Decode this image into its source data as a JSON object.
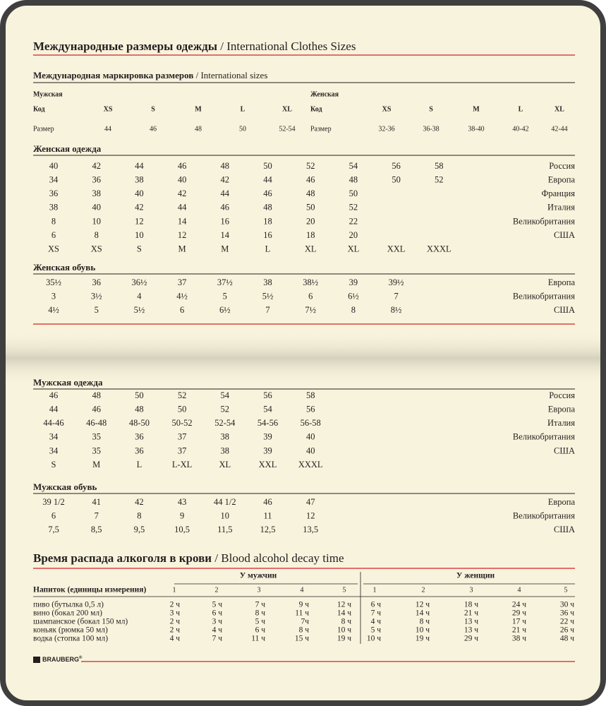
{
  "header": {
    "title": "Международные размеры одежды",
    "subtitle": "/ International Clothes Sizes"
  },
  "international": {
    "title": "Международная маркировка размеров",
    "subtitle": "/ International sizes",
    "men": {
      "label": "Мужская",
      "rows": [
        [
          "Код",
          "XS",
          "S",
          "M",
          "L",
          "XL"
        ],
        [
          "Размер",
          "44",
          "46",
          "48",
          "50",
          "52-54"
        ]
      ]
    },
    "women": {
      "label": "Женская",
      "rows": [
        [
          "Код",
          "XS",
          "S",
          "M",
          "L",
          "XL"
        ],
        [
          "Размер",
          "32-36",
          "36-38",
          "38-40",
          "40-42",
          "42-44"
        ]
      ]
    }
  },
  "sections": [
    {
      "title": "Женская одежда",
      "rows": [
        {
          "cells": [
            "40",
            "42",
            "44",
            "46",
            "48",
            "50",
            "52",
            "54",
            "56",
            "58"
          ],
          "country": "Россия"
        },
        {
          "cells": [
            "34",
            "36",
            "38",
            "40",
            "42",
            "44",
            "46",
            "48",
            "50",
            "52"
          ],
          "country": "Европа"
        },
        {
          "cells": [
            "36",
            "38",
            "40",
            "42",
            "44",
            "46",
            "48",
            "50"
          ],
          "country": "Франция"
        },
        {
          "cells": [
            "38",
            "40",
            "42",
            "44",
            "46",
            "48",
            "50",
            "52"
          ],
          "country": "Италия"
        },
        {
          "cells": [
            "8",
            "10",
            "12",
            "14",
            "16",
            "18",
            "20",
            "22"
          ],
          "country": "Великобритания"
        },
        {
          "cells": [
            "6",
            "8",
            "10",
            "12",
            "14",
            "16",
            "18",
            "20"
          ],
          "country": "США"
        },
        {
          "cells": [
            "XS",
            "XS",
            "S",
            "M",
            "M",
            "L",
            "XL",
            "XL",
            "XXL",
            "XXXL"
          ]
        }
      ]
    },
    {
      "title": "Женская обувь",
      "rows": [
        {
          "cells": [
            "35½",
            "36",
            "36½",
            "37",
            "37½",
            "38",
            "38½",
            "39",
            "39½"
          ],
          "country": "Европа"
        },
        {
          "cells": [
            "3",
            "3½",
            "4",
            "4½",
            "5",
            "5½",
            "6",
            "6½",
            "7"
          ],
          "country": "Великобритания"
        },
        {
          "cells": [
            "4½",
            "5",
            "5½",
            "6",
            "6½",
            "7",
            "7½",
            "8",
            "8½"
          ],
          "country": "США"
        }
      ]
    },
    {
      "title": "Мужская одежда",
      "rows": [
        {
          "cells": [
            "46",
            "48",
            "50",
            "52",
            "54",
            "56",
            "58"
          ],
          "country": "Россия"
        },
        {
          "cells": [
            "44",
            "46",
            "48",
            "50",
            "52",
            "54",
            "56"
          ],
          "country": "Европа"
        },
        {
          "cells": [
            "44-46",
            "46-48",
            "48-50",
            "50-52",
            "52-54",
            "54-56",
            "56-58"
          ],
          "country": "Италия"
        },
        {
          "cells": [
            "34",
            "35",
            "36",
            "37",
            "38",
            "39",
            "40"
          ],
          "country": "Великобритания"
        },
        {
          "cells": [
            "34",
            "35",
            "36",
            "37",
            "38",
            "39",
            "40"
          ],
          "country": "США"
        },
        {
          "cells": [
            "S",
            "M",
            "L",
            "L-XL",
            "XL",
            "XXL",
            "XXXL"
          ]
        }
      ]
    },
    {
      "title": "Мужская обувь",
      "rows": [
        {
          "cells": [
            "39 1/2",
            "41",
            "42",
            "43",
            "44 1/2",
            "46",
            "47"
          ],
          "country": "Европа"
        },
        {
          "cells": [
            "6",
            "7",
            "8",
            "9",
            "10",
            "11",
            "12"
          ],
          "country": "Великобритания"
        },
        {
          "cells": [
            "7,5",
            "8,5",
            "9,5",
            "10,5",
            "11,5",
            "12,5",
            "13,5"
          ],
          "country": "США"
        }
      ]
    }
  ],
  "alcohol": {
    "title": "Время распада алкоголя в крови",
    "subtitle": "/ Blood alcohol decay time",
    "men_label": "У мужчин",
    "women_label": "У женщин",
    "header": [
      "Напиток (единицы измерения)",
      "1",
      "2",
      "3",
      "4",
      "5",
      "1",
      "2",
      "3",
      "4",
      "5"
    ],
    "rows": [
      [
        "пиво (бутылка 0,5 л)",
        "2 ч",
        "5 ч",
        "7 ч",
        "9 ч",
        "12 ч",
        "6 ч",
        "12 ч",
        "18 ч",
        "24 ч",
        "30 ч"
      ],
      [
        "вино (бокал 200 мл)",
        "3 ч",
        "6 ч",
        "8 ч",
        "11 ч",
        "14 ч",
        "7 ч",
        "14 ч",
        "21 ч",
        "29 ч",
        "36 ч"
      ],
      [
        "шампанское (бокал 150 мл)",
        "2 ч",
        "3 ч",
        "5 ч",
        "7ч",
        "8 ч",
        "4 ч",
        "8 ч",
        "13 ч",
        "17 ч",
        "22 ч"
      ],
      [
        "коньяк (рюмка 50 мл)",
        "2 ч",
        "4 ч",
        "6 ч",
        "8 ч",
        "10 ч",
        "5 ч",
        "10 ч",
        "13 ч",
        "21 ч",
        "26 ч"
      ],
      [
        "водка (стопка 100 мл)",
        "4 ч",
        "7 ч",
        "11 ч",
        "15 ч",
        "19 ч",
        "10 ч",
        "19 ч",
        "29 ч",
        "38 ч",
        "48 ч"
      ]
    ]
  },
  "footer": {
    "brand": "BRAUBERG",
    "mark": "®"
  }
}
